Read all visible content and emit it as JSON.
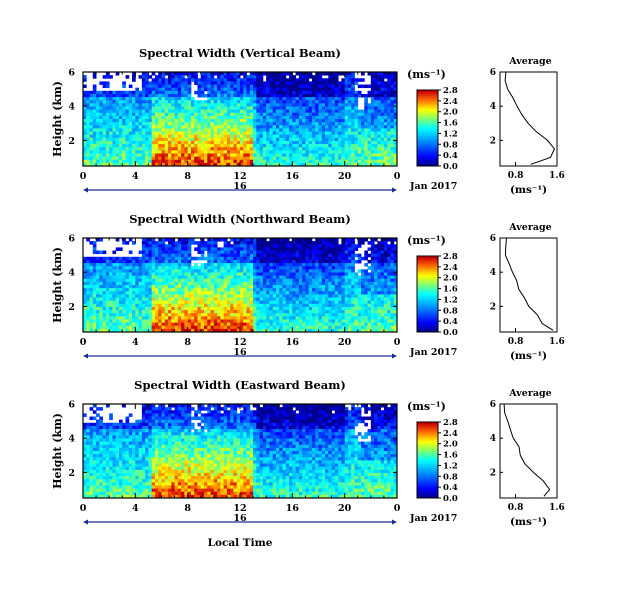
{
  "chart_data": [
    {
      "type": "heatmap",
      "title": "Spectral Width (Vertical Beam)",
      "ylabel": "Height (km)",
      "x_ticks": [
        "0",
        "4",
        "8",
        "12",
        "16",
        "20",
        "0"
      ],
      "y_ticks": [
        "2",
        "4",
        "6"
      ],
      "date_label": "16",
      "date_tail": "Jan 2017",
      "colorbar": {
        "unit": "(ms⁻¹)",
        "ticks": [
          "0.0",
          "0.4",
          "0.8",
          "1.2",
          "1.6",
          "2.0",
          "2.4",
          "2.8"
        ]
      },
      "profile": {
        "title": "Average",
        "x_ticks": [
          "0.8",
          "1.6"
        ],
        "y_ticks": [
          "2",
          "4",
          "6"
        ],
        "xlabel": "(ms⁻¹)",
        "xlim": [
          0.5,
          1.6
        ],
        "ylim": [
          0.5,
          6.0
        ],
        "heights": [
          0.6,
          1.0,
          1.5,
          2.0,
          2.5,
          3.0,
          3.5,
          4.0,
          4.5,
          5.0,
          5.5,
          6.0
        ],
        "values": [
          1.1,
          1.45,
          1.55,
          1.4,
          1.2,
          1.05,
          0.95,
          0.85,
          0.72,
          0.65,
          0.62,
          0.6
        ]
      }
    },
    {
      "type": "heatmap",
      "title": "Spectral Width (Northward Beam)",
      "ylabel": "Height (km)",
      "x_ticks": [
        "0",
        "4",
        "8",
        "12",
        "16",
        "20",
        "0"
      ],
      "y_ticks": [
        "2",
        "4",
        "6"
      ],
      "date_label": "16",
      "date_tail": "Jan 2017",
      "colorbar": {
        "unit": "(ms⁻¹)",
        "ticks": [
          "0.0",
          "0.4",
          "0.8",
          "1.2",
          "1.6",
          "2.0",
          "2.4",
          "2.8"
        ]
      },
      "profile": {
        "title": "Average",
        "x_ticks": [
          "0.8",
          "1.6"
        ],
        "y_ticks": [
          "2",
          "4",
          "6"
        ],
        "xlabel": "(ms⁻¹)",
        "xlim": [
          0.5,
          1.6
        ],
        "ylim": [
          0.5,
          6.0
        ],
        "heights": [
          0.6,
          1.0,
          1.5,
          2.0,
          2.5,
          3.0,
          3.5,
          4.0,
          4.5,
          5.0,
          5.5,
          6.0
        ],
        "values": [
          1.5,
          1.3,
          1.2,
          1.05,
          0.95,
          0.88,
          0.8,
          0.75,
          0.68,
          0.62,
          0.6,
          0.6
        ]
      }
    },
    {
      "type": "heatmap",
      "title": "Spectral Width (Eastward Beam)",
      "ylabel": "Height (km)",
      "xlabel": "Local Time",
      "x_ticks": [
        "0",
        "4",
        "8",
        "12",
        "16",
        "20",
        "0"
      ],
      "y_ticks": [
        "2",
        "4",
        "6"
      ],
      "date_label": "16",
      "date_tail": "Jan 2017",
      "colorbar": {
        "unit": "(ms⁻¹)",
        "ticks": [
          "0.0",
          "0.4",
          "0.8",
          "1.2",
          "1.6",
          "2.0",
          "2.4",
          "2.8"
        ]
      },
      "profile": {
        "title": "Average",
        "x_ticks": [
          "0.8",
          "1.6"
        ],
        "y_ticks": [
          "2",
          "4",
          "6"
        ],
        "xlabel": "(ms⁻¹)",
        "xlim": [
          0.5,
          1.6
        ],
        "ylim": [
          0.5,
          6.0
        ],
        "heights": [
          0.6,
          1.0,
          1.5,
          2.0,
          2.5,
          3.0,
          3.5,
          4.0,
          4.5,
          5.0,
          5.5,
          6.0
        ],
        "values": [
          1.35,
          1.45,
          1.35,
          1.15,
          1.0,
          0.92,
          0.85,
          0.75,
          0.68,
          0.62,
          0.6,
          0.6
        ]
      }
    }
  ]
}
